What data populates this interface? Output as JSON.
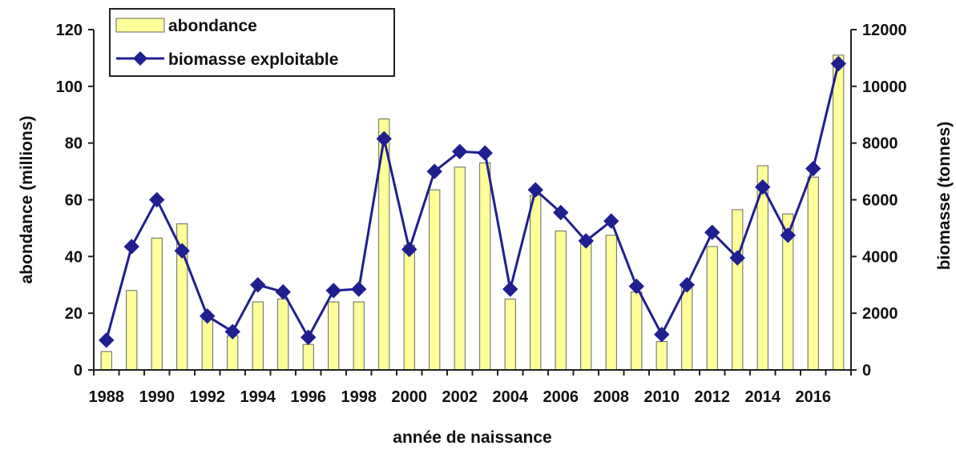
{
  "chart_data": {
    "type": "bar",
    "title": "",
    "xlabel": "année de naissance",
    "ylabel": "abondance (millions)",
    "y2label": "biomasse (tonnes)",
    "ylim": [
      0,
      120
    ],
    "y2lim": [
      0,
      12000
    ],
    "yticks": [
      0,
      20,
      40,
      60,
      80,
      100,
      120
    ],
    "y2ticks": [
      0,
      2000,
      4000,
      6000,
      8000,
      10000,
      12000
    ],
    "x_tick_labels": [
      "1988",
      "1990",
      "1992",
      "1994",
      "1996",
      "1998",
      "2000",
      "2002",
      "2004",
      "2006",
      "2008",
      "2010",
      "2012",
      "2014",
      "2016"
    ],
    "categories": [
      "1988",
      "1989",
      "1990",
      "1991",
      "1992",
      "1993",
      "1994",
      "1995",
      "1996",
      "1997",
      "1998",
      "1999",
      "2000",
      "2001",
      "2002",
      "2003",
      "2004",
      "2005",
      "2006",
      "2007",
      "2008",
      "2009",
      "2010",
      "2011",
      "2012",
      "2013",
      "2014",
      "2015",
      "2016",
      "2017"
    ],
    "grid": false,
    "legend_position": "top-left",
    "series": [
      {
        "name": "abondance",
        "type": "bar",
        "axis": "left",
        "color": "#ffff99",
        "edge_color": "#666666",
        "values": [
          6.5,
          28,
          46.5,
          51.5,
          18,
          12,
          24,
          25,
          9,
          24,
          24,
          88.5,
          44,
          63.5,
          71.5,
          73,
          25,
          61.5,
          49,
          45.5,
          47.5,
          27.5,
          10,
          30,
          43.5,
          56.5,
          72,
          55,
          68,
          111
        ]
      },
      {
        "name": "biomasse exploitable",
        "type": "line",
        "axis": "right",
        "color": "#1f1f8f",
        "marker": "diamond",
        "values": [
          1050,
          4350,
          6000,
          4200,
          1900,
          1350,
          3000,
          2750,
          1150,
          2800,
          2850,
          8150,
          4250,
          7000,
          7700,
          7650,
          2850,
          6350,
          5550,
          4550,
          5250,
          2950,
          1250,
          3000,
          4850,
          3950,
          6450,
          4750,
          7100,
          10800
        ]
      }
    ]
  }
}
